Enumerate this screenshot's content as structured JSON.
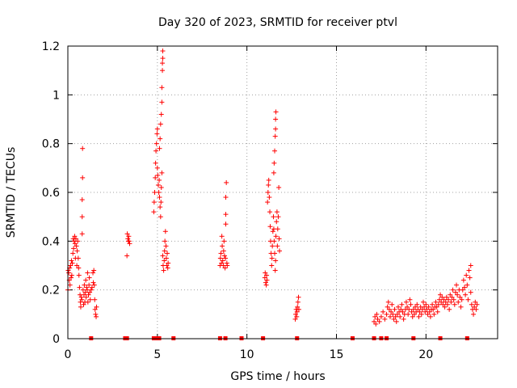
{
  "chart_data": {
    "type": "scatter",
    "title": "Day 320 of 2023, SRMTID for receiver ptvl",
    "xlabel": "GPS time / hours",
    "ylabel": "SRMTID / TECUs",
    "xlim": [
      0,
      24
    ],
    "ylim": [
      0,
      1.2
    ],
    "xticks": [
      0,
      5,
      10,
      15,
      20
    ],
    "xtick_labels": [
      "0",
      "5",
      "10",
      "15",
      "20"
    ],
    "yticks": [
      0,
      0.2,
      0.4,
      0.6,
      0.8,
      1.0,
      1.2
    ],
    "ytick_labels": [
      "0",
      "0.2",
      "0.4",
      "0.6",
      "0.8",
      "1",
      "1.2"
    ],
    "grid": true,
    "marker": "+",
    "color": "#ff0000",
    "zero_markers_x": [
      1.3,
      3.2,
      3.3,
      4.8,
      4.9,
      5.1,
      5.9,
      8.5,
      8.8,
      9.7,
      10.9,
      12.8,
      15.9,
      17.1,
      17.5,
      17.8,
      19.3,
      20.8,
      22.3
    ],
    "series": [
      {
        "name": "SRMTID",
        "points": [
          [
            0.0,
            0.2
          ],
          [
            0.02,
            0.28
          ],
          [
            0.05,
            0.27
          ],
          [
            0.08,
            0.24
          ],
          [
            0.1,
            0.29
          ],
          [
            0.12,
            0.22
          ],
          [
            0.15,
            0.3
          ],
          [
            0.18,
            0.25
          ],
          [
            0.2,
            0.32
          ],
          [
            0.22,
            0.26
          ],
          [
            0.25,
            0.31
          ],
          [
            0.28,
            0.35
          ],
          [
            0.3,
            0.41
          ],
          [
            0.32,
            0.37
          ],
          [
            0.35,
            0.4
          ],
          [
            0.38,
            0.42
          ],
          [
            0.4,
            0.39
          ],
          [
            0.42,
            0.33
          ],
          [
            0.45,
            0.41
          ],
          [
            0.48,
            0.38
          ],
          [
            0.5,
            0.3
          ],
          [
            0.52,
            0.36
          ],
          [
            0.55,
            0.4
          ],
          [
            0.58,
            0.33
          ],
          [
            0.6,
            0.29
          ],
          [
            0.62,
            0.26
          ],
          [
            0.65,
            0.21
          ],
          [
            0.68,
            0.18
          ],
          [
            0.7,
            0.15
          ],
          [
            0.72,
            0.13
          ],
          [
            0.75,
            0.17
          ],
          [
            0.78,
            0.16
          ],
          [
            0.8,
            0.43
          ],
          [
            0.8,
            0.5
          ],
          [
            0.8,
            0.57
          ],
          [
            0.82,
            0.66
          ],
          [
            0.82,
            0.78
          ],
          [
            0.85,
            0.2
          ],
          [
            0.88,
            0.14
          ],
          [
            0.9,
            0.18
          ],
          [
            0.92,
            0.22
          ],
          [
            0.95,
            0.15
          ],
          [
            0.98,
            0.19
          ],
          [
            1.0,
            0.24
          ],
          [
            1.02,
            0.17
          ],
          [
            1.05,
            0.21
          ],
          [
            1.08,
            0.2
          ],
          [
            1.1,
            0.27
          ],
          [
            1.12,
            0.15
          ],
          [
            1.15,
            0.18
          ],
          [
            1.18,
            0.22
          ],
          [
            1.2,
            0.25
          ],
          [
            1.22,
            0.19
          ],
          [
            1.25,
            0.16
          ],
          [
            1.3,
            0.2
          ],
          [
            1.35,
            0.21
          ],
          [
            1.4,
            0.27
          ],
          [
            1.42,
            0.23
          ],
          [
            1.45,
            0.28
          ],
          [
            1.48,
            0.22
          ],
          [
            1.5,
            0.16
          ],
          [
            1.52,
            0.12
          ],
          [
            1.55,
            0.1
          ],
          [
            1.58,
            0.09
          ],
          [
            1.6,
            0.13
          ],
          [
            3.3,
            0.34
          ],
          [
            3.32,
            0.43
          ],
          [
            3.35,
            0.41
          ],
          [
            3.38,
            0.4
          ],
          [
            3.4,
            0.42
          ],
          [
            3.42,
            0.4
          ],
          [
            3.45,
            0.39
          ],
          [
            4.8,
            0.52
          ],
          [
            4.82,
            0.56
          ],
          [
            4.85,
            0.6
          ],
          [
            4.88,
            0.66
          ],
          [
            4.9,
            0.72
          ],
          [
            4.92,
            0.77
          ],
          [
            4.95,
            0.8
          ],
          [
            4.98,
            0.84
          ],
          [
            5.0,
            0.86
          ],
          [
            5.0,
            0.7
          ],
          [
            5.02,
            0.67
          ],
          [
            5.05,
            0.63
          ],
          [
            5.08,
            0.6
          ],
          [
            5.1,
            0.65
          ],
          [
            5.12,
            0.58
          ],
          [
            5.15,
            0.54
          ],
          [
            5.18,
            0.5
          ],
          [
            5.2,
            0.56
          ],
          [
            5.22,
            0.62
          ],
          [
            5.25,
            0.68
          ],
          [
            5.12,
            0.78
          ],
          [
            5.15,
            0.82
          ],
          [
            5.18,
            0.88
          ],
          [
            5.22,
            0.92
          ],
          [
            5.25,
            0.97
          ],
          [
            5.25,
            1.03
          ],
          [
            5.28,
            1.1
          ],
          [
            5.3,
            1.15
          ],
          [
            5.3,
            1.18
          ],
          [
            5.28,
            1.13
          ],
          [
            5.3,
            0.34
          ],
          [
            5.32,
            0.3
          ],
          [
            5.35,
            0.28
          ],
          [
            5.38,
            0.32
          ],
          [
            5.4,
            0.36
          ],
          [
            5.42,
            0.4
          ],
          [
            5.45,
            0.44
          ],
          [
            5.48,
            0.38
          ],
          [
            5.5,
            0.33
          ],
          [
            5.52,
            0.3
          ],
          [
            5.55,
            0.35
          ],
          [
            5.58,
            0.29
          ],
          [
            5.6,
            0.31
          ],
          [
            8.5,
            0.3
          ],
          [
            8.52,
            0.33
          ],
          [
            8.55,
            0.35
          ],
          [
            8.58,
            0.31
          ],
          [
            8.6,
            0.42
          ],
          [
            8.62,
            0.38
          ],
          [
            8.65,
            0.32
          ],
          [
            8.68,
            0.3
          ],
          [
            8.7,
            0.36
          ],
          [
            8.72,
            0.4
          ],
          [
            8.75,
            0.34
          ],
          [
            8.78,
            0.29
          ],
          [
            8.8,
            0.33
          ],
          [
            8.82,
            0.47
          ],
          [
            8.82,
            0.51
          ],
          [
            8.82,
            0.58
          ],
          [
            8.85,
            0.64
          ],
          [
            8.88,
            0.31
          ],
          [
            8.9,
            0.3
          ],
          [
            11.0,
            0.25
          ],
          [
            11.02,
            0.27
          ],
          [
            11.05,
            0.23
          ],
          [
            11.08,
            0.22
          ],
          [
            11.1,
            0.26
          ],
          [
            11.12,
            0.24
          ],
          [
            11.15,
            0.56
          ],
          [
            11.18,
            0.6
          ],
          [
            11.2,
            0.63
          ],
          [
            11.22,
            0.65
          ],
          [
            11.25,
            0.58
          ],
          [
            11.28,
            0.52
          ],
          [
            11.3,
            0.46
          ],
          [
            11.32,
            0.4
          ],
          [
            11.35,
            0.35
          ],
          [
            11.38,
            0.3
          ],
          [
            11.4,
            0.33
          ],
          [
            11.42,
            0.38
          ],
          [
            11.45,
            0.44
          ],
          [
            11.48,
            0.5
          ],
          [
            11.5,
            0.45
          ],
          [
            11.52,
            0.4
          ],
          [
            11.55,
            0.35
          ],
          [
            11.58,
            0.28
          ],
          [
            11.6,
            0.32
          ],
          [
            11.62,
            0.42
          ],
          [
            11.65,
            0.48
          ],
          [
            11.68,
            0.52
          ],
          [
            11.5,
            0.68
          ],
          [
            11.52,
            0.72
          ],
          [
            11.55,
            0.77
          ],
          [
            11.58,
            0.83
          ],
          [
            11.6,
            0.86
          ],
          [
            11.6,
            0.9
          ],
          [
            11.62,
            0.93
          ],
          [
            11.7,
            0.38
          ],
          [
            11.72,
            0.45
          ],
          [
            11.75,
            0.5
          ],
          [
            11.78,
            0.62
          ],
          [
            11.8,
            0.41
          ],
          [
            11.82,
            0.36
          ],
          [
            12.7,
            0.08
          ],
          [
            12.72,
            0.1
          ],
          [
            12.75,
            0.12
          ],
          [
            12.78,
            0.09
          ],
          [
            12.8,
            0.11
          ],
          [
            12.82,
            0.13
          ],
          [
            12.85,
            0.15
          ],
          [
            12.88,
            0.17
          ],
          [
            12.9,
            0.12
          ],
          [
            17.1,
            0.07
          ],
          [
            17.15,
            0.09
          ],
          [
            17.2,
            0.06
          ],
          [
            17.25,
            0.1
          ],
          [
            17.3,
            0.08
          ],
          [
            17.4,
            0.07
          ],
          [
            17.5,
            0.09
          ],
          [
            17.6,
            0.11
          ],
          [
            17.7,
            0.08
          ],
          [
            17.8,
            0.1
          ],
          [
            17.85,
            0.13
          ],
          [
            17.9,
            0.15
          ],
          [
            17.95,
            0.12
          ],
          [
            18.0,
            0.09
          ],
          [
            18.05,
            0.11
          ],
          [
            18.1,
            0.14
          ],
          [
            18.15,
            0.1
          ],
          [
            18.2,
            0.08
          ],
          [
            18.25,
            0.12
          ],
          [
            18.3,
            0.09
          ],
          [
            18.35,
            0.07
          ],
          [
            18.4,
            0.1
          ],
          [
            18.45,
            0.13
          ],
          [
            18.5,
            0.11
          ],
          [
            18.55,
            0.09
          ],
          [
            18.6,
            0.12
          ],
          [
            18.65,
            0.14
          ],
          [
            18.7,
            0.11
          ],
          [
            18.75,
            0.08
          ],
          [
            18.8,
            0.1
          ],
          [
            18.85,
            0.12
          ],
          [
            18.9,
            0.15
          ],
          [
            18.95,
            0.13
          ],
          [
            19.0,
            0.1
          ],
          [
            19.05,
            0.12
          ],
          [
            19.1,
            0.16
          ],
          [
            19.15,
            0.14
          ],
          [
            19.2,
            0.11
          ],
          [
            19.25,
            0.09
          ],
          [
            19.3,
            0.12
          ],
          [
            19.35,
            0.1
          ],
          [
            19.4,
            0.13
          ],
          [
            19.45,
            0.11
          ],
          [
            19.5,
            0.14
          ],
          [
            19.55,
            0.12
          ],
          [
            19.6,
            0.09
          ],
          [
            19.65,
            0.11
          ],
          [
            19.7,
            0.13
          ],
          [
            19.75,
            0.1
          ],
          [
            19.8,
            0.12
          ],
          [
            19.85,
            0.15
          ],
          [
            19.9,
            0.13
          ],
          [
            19.95,
            0.11
          ],
          [
            20.0,
            0.14
          ],
          [
            20.05,
            0.12
          ],
          [
            20.1,
            0.1
          ],
          [
            20.15,
            0.13
          ],
          [
            20.2,
            0.11
          ],
          [
            20.25,
            0.09
          ],
          [
            20.3,
            0.12
          ],
          [
            20.35,
            0.14
          ],
          [
            20.4,
            0.12
          ],
          [
            20.45,
            0.1
          ],
          [
            20.5,
            0.13
          ],
          [
            20.55,
            0.15
          ],
          [
            20.6,
            0.13
          ],
          [
            20.65,
            0.11
          ],
          [
            20.7,
            0.14
          ],
          [
            20.75,
            0.16
          ],
          [
            20.8,
            0.18
          ],
          [
            20.85,
            0.15
          ],
          [
            20.9,
            0.17
          ],
          [
            20.95,
            0.14
          ],
          [
            21.0,
            0.16
          ],
          [
            21.05,
            0.13
          ],
          [
            21.1,
            0.15
          ],
          [
            21.15,
            0.17
          ],
          [
            21.2,
            0.14
          ],
          [
            21.25,
            0.16
          ],
          [
            21.3,
            0.12
          ],
          [
            21.35,
            0.18
          ],
          [
            21.4,
            0.15
          ],
          [
            21.45,
            0.17
          ],
          [
            21.5,
            0.2
          ],
          [
            21.55,
            0.16
          ],
          [
            21.6,
            0.14
          ],
          [
            21.65,
            0.19
          ],
          [
            21.7,
            0.22
          ],
          [
            21.75,
            0.18
          ],
          [
            21.8,
            0.15
          ],
          [
            21.85,
            0.2
          ],
          [
            21.9,
            0.17
          ],
          [
            21.95,
            0.13
          ],
          [
            22.0,
            0.16
          ],
          [
            22.05,
            0.2
          ],
          [
            22.1,
            0.24
          ],
          [
            22.15,
            0.21
          ],
          [
            22.2,
            0.18
          ],
          [
            22.25,
            0.26
          ],
          [
            22.3,
            0.22
          ],
          [
            22.35,
            0.16
          ],
          [
            22.4,
            0.28
          ],
          [
            22.45,
            0.25
          ],
          [
            22.5,
            0.3
          ],
          [
            22.5,
            0.19
          ],
          [
            22.55,
            0.14
          ],
          [
            22.6,
            0.12
          ],
          [
            22.65,
            0.1
          ],
          [
            22.7,
            0.13
          ],
          [
            22.75,
            0.15
          ],
          [
            22.8,
            0.12
          ],
          [
            22.85,
            0.14
          ]
        ]
      }
    ]
  }
}
